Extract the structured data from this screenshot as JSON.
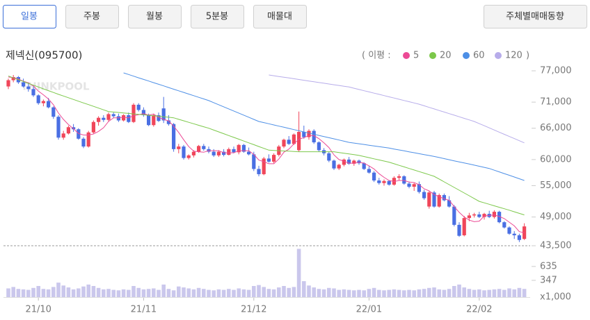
{
  "tabs": [
    "일봉",
    "주봉",
    "월봉",
    "5분봉",
    "매물대"
  ],
  "side_button": "주체별매매동향",
  "chart_data": {
    "type": "candlestick",
    "title": "제넥신(095700)",
    "watermark": "THINKPOOL",
    "legend_prefix": "( 이평 :",
    "legend_suffix": ")",
    "up_color": "#f0465a",
    "down_color": "#4a6fe3",
    "volume_color": "#cac7ec",
    "ylim": [
      43500,
      77000
    ],
    "yticks": [
      {
        "value": 77000,
        "label": "77,000"
      },
      {
        "value": 71000,
        "label": "71,000"
      },
      {
        "value": 66000,
        "label": "66,000"
      },
      {
        "value": 60000,
        "label": "60,000"
      },
      {
        "value": 55000,
        "label": "55,000"
      },
      {
        "value": 49000,
        "label": "49,000"
      },
      {
        "value": 43500,
        "label": "43,500"
      }
    ],
    "volume_lim": [
      0,
      1050
    ],
    "volume_ticks": [
      635,
      347
    ],
    "volume_unit": "x1,000",
    "categories": [
      null,
      null,
      null,
      null,
      null,
      null,
      "21/10",
      null,
      null,
      null,
      null,
      null,
      null,
      null,
      null,
      null,
      null,
      null,
      null,
      null,
      null,
      null,
      null,
      null,
      null,
      null,
      null,
      "21/11",
      null,
      null,
      null,
      null,
      null,
      null,
      null,
      null,
      null,
      null,
      null,
      null,
      null,
      null,
      null,
      null,
      null,
      null,
      null,
      null,
      null,
      "21/12",
      null,
      null,
      null,
      null,
      null,
      null,
      null,
      null,
      null,
      null,
      null,
      null,
      null,
      null,
      null,
      null,
      null,
      null,
      null,
      null,
      null,
      null,
      "22/01",
      null,
      null,
      null,
      null,
      null,
      null,
      null,
      null,
      null,
      null,
      null,
      null,
      null,
      null,
      null,
      null,
      null,
      null,
      null,
      null,
      null,
      "22/02",
      null,
      null,
      null,
      null,
      null,
      null,
      null,
      null,
      null
    ],
    "open": [
      74000,
      75200,
      75800,
      74800,
      74000,
      73500,
      72300,
      70800,
      71200,
      70000,
      68200,
      64200,
      65000,
      66200,
      65800,
      64000,
      62500,
      65200,
      67200,
      68000,
      67600,
      68700,
      68300,
      67500,
      68500,
      67200,
      70500,
      69500,
      68500,
      66600,
      68500,
      69800,
      67500,
      66800,
      62000,
      62500,
      60300,
      60800,
      61500,
      62600,
      62000,
      61500,
      60800,
      61500,
      60900,
      62000,
      61400,
      62800,
      61500,
      61000,
      58200,
      57200,
      60200,
      59600,
      60900,
      62500,
      63800,
      63000,
      61800,
      65300,
      64300,
      65500,
      63300,
      61800,
      61200,
      59800,
      58300,
      59000,
      60000,
      59200,
      59800,
      59300,
      58200,
      57500,
      56000,
      55500,
      55900,
      55200,
      56500,
      56800,
      55400,
      54800,
      55300,
      53800,
      51000,
      53700,
      51000,
      53200,
      52200,
      51000,
      47500,
      45500,
      48800,
      49300,
      49500,
      49000,
      49600,
      49000,
      50000,
      48000,
      47000,
      45800,
      45500,
      44800
    ],
    "high": [
      75500,
      76200,
      76000,
      75500,
      74800,
      74000,
      72500,
      71500,
      71800,
      70200,
      68500,
      65500,
      66500,
      66800,
      66000,
      64300,
      65500,
      67500,
      68300,
      68500,
      69000,
      69000,
      68800,
      68700,
      69000,
      70800,
      70800,
      70000,
      68800,
      68800,
      69000,
      72000,
      68500,
      67000,
      63000,
      62800,
      61000,
      61800,
      62800,
      63000,
      62500,
      62000,
      61800,
      62000,
      62300,
      62500,
      63000,
      63000,
      62300,
      61500,
      58800,
      60500,
      61000,
      61200,
      62800,
      64000,
      64500,
      65000,
      69200,
      66500,
      65800,
      65800,
      63500,
      62200,
      61500,
      60000,
      59200,
      60200,
      60500,
      60000,
      60000,
      59500,
      58800,
      57800,
      56500,
      56200,
      56000,
      56800,
      57200,
      57000,
      55800,
      55500,
      55800,
      54200,
      54000,
      54000,
      53500,
      53500,
      53000,
      51300,
      48000,
      49200,
      49800,
      49800,
      50000,
      49800,
      50200,
      50300,
      50200,
      48200,
      47200,
      46300,
      45800,
      47800
    ],
    "low": [
      73500,
      74800,
      74500,
      73800,
      73000,
      72000,
      70500,
      70200,
      69800,
      67800,
      63800,
      63800,
      64800,
      65300,
      63800,
      62200,
      62300,
      65000,
      66500,
      67200,
      67300,
      68000,
      67200,
      67300,
      67000,
      67000,
      69200,
      68200,
      66400,
      66300,
      67200,
      67000,
      66500,
      61500,
      61200,
      60000,
      60000,
      60400,
      61300,
      61700,
      61200,
      60500,
      60500,
      60600,
      60800,
      61200,
      61000,
      61300,
      60800,
      57800,
      56800,
      57000,
      59400,
      59300,
      60600,
      62200,
      62800,
      62800,
      61500,
      64000,
      63800,
      63000,
      61500,
      60800,
      59500,
      58000,
      58000,
      58700,
      59000,
      58800,
      59000,
      58000,
      57300,
      55700,
      55200,
      55000,
      55000,
      55000,
      56000,
      55200,
      54500,
      54000,
      53500,
      52300,
      50600,
      50800,
      50800,
      52000,
      50800,
      47200,
      45200,
      45300,
      48200,
      48900,
      48800,
      48500,
      48800,
      48700,
      47800,
      46800,
      45600,
      44800,
      44200,
      44600
    ],
    "close": [
      75200,
      75800,
      74800,
      74000,
      73500,
      72300,
      70800,
      71200,
      70000,
      68200,
      64200,
      65000,
      66200,
      65800,
      64000,
      62500,
      65200,
      67200,
      68000,
      67600,
      68700,
      68300,
      67500,
      68500,
      67200,
      70500,
      69500,
      68500,
      66600,
      68500,
      67400,
      67500,
      66800,
      62000,
      62500,
      60300,
      60800,
      61500,
      62600,
      62000,
      61500,
      60800,
      61500,
      60900,
      62000,
      61400,
      62800,
      61500,
      61000,
      58200,
      57200,
      60200,
      59600,
      60900,
      62500,
      63800,
      63000,
      64800,
      65300,
      64300,
      65500,
      63300,
      61800,
      61200,
      59800,
      58300,
      59000,
      60000,
      59200,
      59800,
      59300,
      58200,
      57500,
      56000,
      55500,
      55900,
      55200,
      56500,
      56800,
      55400,
      54800,
      55300,
      53800,
      52600,
      53700,
      51000,
      53200,
      52200,
      51000,
      47500,
      45400,
      48800,
      49300,
      49500,
      49000,
      49600,
      49000,
      50000,
      48000,
      47000,
      45800,
      45500,
      44600,
      47200
    ],
    "volume": [
      180,
      210,
      170,
      160,
      150,
      190,
      230,
      170,
      160,
      210,
      300,
      240,
      200,
      160,
      180,
      220,
      260,
      230,
      190,
      160,
      170,
      150,
      140,
      160,
      150,
      230,
      190,
      160,
      170,
      180,
      150,
      260,
      170,
      140,
      220,
      200,
      180,
      160,
      190,
      170,
      150,
      140,
      160,
      150,
      170,
      150,
      180,
      160,
      150,
      230,
      250,
      210,
      170,
      160,
      200,
      230,
      190,
      210,
      1000,
      330,
      240,
      200,
      170,
      160,
      190,
      180,
      150,
      160,
      150,
      140,
      150,
      140,
      170,
      190,
      150,
      140,
      150,
      160,
      150,
      140,
      150,
      140,
      160,
      170,
      190,
      200,
      160,
      150,
      170,
      230,
      260,
      200,
      170,
      150,
      160,
      140,
      150,
      160,
      170,
      150,
      180,
      160,
      190,
      170
    ],
    "ma": [
      {
        "name": "5",
        "color": "#ec4a95",
        "values": [
          75800,
          75700,
          75400,
          75000,
          74700,
          74100,
          73100,
          72400,
          71600,
          70500,
          68900,
          67700,
          66700,
          65900,
          65000,
          64700,
          64700,
          64900,
          65400,
          66100,
          67300,
          68000,
          68000,
          68100,
          68000,
          68400,
          68600,
          68800,
          68500,
          68700,
          68100,
          67700,
          67400,
          66400,
          65200,
          63800,
          62500,
          61600,
          61500,
          61400,
          61700,
          61700,
          61700,
          61300,
          61300,
          61300,
          61700,
          61700,
          61700,
          61000,
          59900,
          59600,
          59200,
          59200,
          60100,
          61400,
          62000,
          63000,
          63900,
          64200,
          64600,
          64600,
          64000,
          63200,
          62300,
          60900,
          60000,
          59700,
          59300,
          59300,
          59500,
          59300,
          58800,
          58200,
          57300,
          56600,
          56000,
          55800,
          56000,
          56000,
          55700,
          55600,
          55200,
          54400,
          54000,
          53300,
          52900,
          52500,
          52200,
          51000,
          49900,
          49000,
          48400,
          48100,
          48200,
          49200,
          49300,
          49400,
          49100,
          48700,
          48000,
          47300,
          46200,
          46000
        ]
      },
      {
        "name": "20",
        "color": "#7cc84a",
        "values": [
          76000,
          75650,
          75300,
          74950,
          74600,
          74250,
          73900,
          73550,
          73200,
          72850,
          72500,
          72170,
          71840,
          71510,
          71180,
          70850,
          70520,
          70190,
          69860,
          69530,
          69200,
          69110,
          69020,
          68930,
          68840,
          68750,
          68660,
          68570,
          68480,
          68390,
          68300,
          68200,
          68100,
          68000,
          67710,
          67430,
          67140,
          66860,
          66570,
          66290,
          66000,
          65650,
          65300,
          64950,
          64600,
          64250,
          63900,
          63550,
          63200,
          62850,
          62500,
          62150,
          61800,
          61750,
          61700,
          61650,
          61600,
          61550,
          61500,
          61500,
          61500,
          61500,
          61500,
          61500,
          61500,
          61500,
          61360,
          61220,
          61080,
          60940,
          60800,
          60580,
          60370,
          60150,
          59930,
          59720,
          59500,
          59200,
          58900,
          58600,
          58300,
          58000,
          57700,
          57400,
          57100,
          56800,
          56270,
          55730,
          55200,
          54670,
          54130,
          53600,
          53070,
          52530,
          52000,
          51720,
          51430,
          51150,
          50870,
          50580,
          50300,
          50000,
          49700,
          49400
        ]
      },
      {
        "name": "60",
        "color": "#4d8fe6",
        "values": [
          null,
          null,
          null,
          null,
          null,
          null,
          null,
          null,
          null,
          null,
          null,
          null,
          null,
          null,
          null,
          null,
          null,
          null,
          null,
          null,
          null,
          null,
          null,
          76600,
          76290,
          75980,
          75660,
          75350,
          75040,
          74730,
          74420,
          74110,
          73790,
          73480,
          73170,
          72860,
          72550,
          72240,
          71920,
          71610,
          71300,
          70900,
          70500,
          70100,
          69700,
          69300,
          68900,
          68500,
          68100,
          67700,
          67300,
          67080,
          66860,
          66630,
          66410,
          66190,
          65970,
          65740,
          65520,
          65300,
          65080,
          64860,
          64630,
          64410,
          64190,
          63970,
          63740,
          63520,
          63300,
          63160,
          63030,
          62890,
          62750,
          62610,
          62480,
          62340,
          62200,
          62020,
          61840,
          61670,
          61490,
          61310,
          61130,
          60960,
          60780,
          60600,
          60390,
          60180,
          59970,
          59760,
          59550,
          59350,
          59140,
          58930,
          58720,
          58510,
          58300,
          57970,
          57640,
          57310,
          56990,
          56660,
          56330,
          56000
        ]
      },
      {
        "name": "120",
        "color": "#b7acea",
        "values": [
          null,
          null,
          null,
          null,
          null,
          null,
          null,
          null,
          null,
          null,
          null,
          null,
          null,
          null,
          null,
          null,
          null,
          null,
          null,
          null,
          null,
          null,
          null,
          null,
          null,
          null,
          null,
          null,
          null,
          null,
          null,
          null,
          null,
          null,
          null,
          null,
          null,
          null,
          null,
          null,
          null,
          null,
          null,
          null,
          null,
          null,
          null,
          null,
          null,
          null,
          null,
          null,
          76200,
          76060,
          75910,
          75770,
          75630,
          75480,
          75340,
          75190,
          75050,
          74910,
          74760,
          74620,
          74480,
          74330,
          74190,
          74040,
          73900,
          73660,
          73430,
          73190,
          72960,
          72720,
          72490,
          72260,
          72020,
          71790,
          71550,
          71310,
          71080,
          70840,
          70600,
          70300,
          70000,
          69700,
          69400,
          69100,
          68800,
          68500,
          68200,
          67900,
          67600,
          67300,
          66890,
          66480,
          66070,
          65660,
          65250,
          64840,
          64430,
          64020,
          63610,
          63200
        ]
      }
    ]
  }
}
